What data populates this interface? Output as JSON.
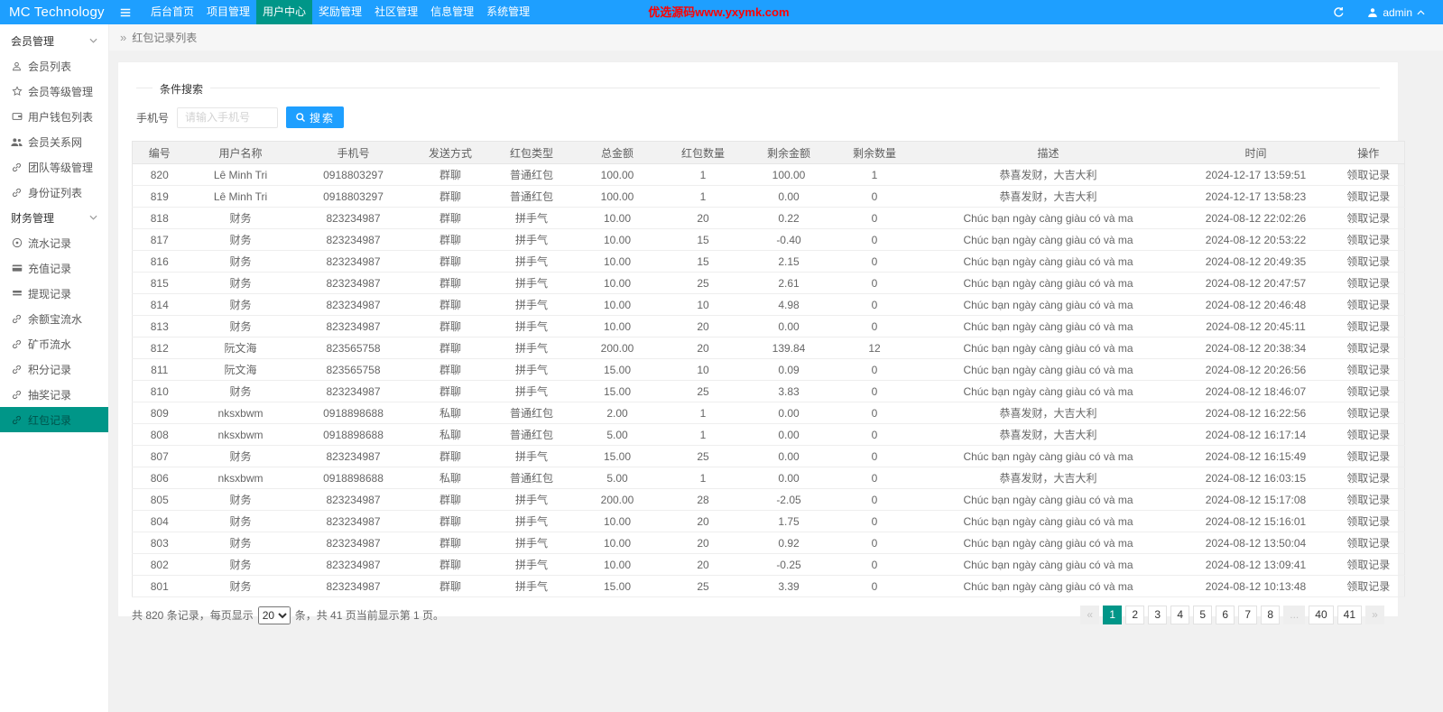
{
  "colors": {
    "topbar": "#1E9FFF",
    "accent_active": "#009688",
    "marquee_red": "#ff0000"
  },
  "header": {
    "logo": "MC Technology",
    "nav": [
      {
        "label": "后台首页",
        "active": false
      },
      {
        "label": "项目管理",
        "active": false
      },
      {
        "label": "用户中心",
        "active": true
      },
      {
        "label": "奖励管理",
        "active": false
      },
      {
        "label": "社区管理",
        "active": false
      },
      {
        "label": "信息管理",
        "active": false
      },
      {
        "label": "系统管理",
        "active": false
      }
    ],
    "marquee": "优选源码www.yxymk.com",
    "user": "admin"
  },
  "sidebar": {
    "groups": [
      {
        "label": "会员管理",
        "items": [
          {
            "icon": "user-icon",
            "label": "会员列表",
            "active": false
          },
          {
            "icon": "star-icon",
            "label": "会员等级管理",
            "active": false
          },
          {
            "icon": "wallet-icon",
            "label": "用户钱包列表",
            "active": false
          },
          {
            "icon": "users-icon",
            "label": "会员关系网",
            "active": false
          },
          {
            "icon": "link-icon",
            "label": "团队等级管理",
            "active": false
          },
          {
            "icon": "link-icon",
            "label": "身份证列表",
            "active": false
          }
        ]
      },
      {
        "label": "财务管理",
        "items": [
          {
            "icon": "record-icon",
            "label": "流水记录",
            "active": false
          },
          {
            "icon": "recharge-icon",
            "label": "充值记录",
            "active": false
          },
          {
            "icon": "withdraw-icon",
            "label": "提现记录",
            "active": false
          },
          {
            "icon": "link-icon",
            "label": "余额宝流水",
            "active": false
          },
          {
            "icon": "link-icon",
            "label": "矿币流水",
            "active": false
          },
          {
            "icon": "link-icon",
            "label": "积分记录",
            "active": false
          },
          {
            "icon": "link-icon",
            "label": "抽奖记录",
            "active": false
          },
          {
            "icon": "link-icon",
            "label": "红包记录",
            "active": true
          }
        ]
      }
    ]
  },
  "breadcrumb": {
    "separator": "»",
    "title": "红包记录列表"
  },
  "search": {
    "legend": "条件搜索",
    "label": "手机号",
    "placeholder": "请输入手机号",
    "button": "搜索"
  },
  "table": {
    "columns": [
      "编号",
      "用户名称",
      "手机号",
      "发送方式",
      "红包类型",
      "总金额",
      "红包数量",
      "剩余金额",
      "剩余数量",
      "描述",
      "时间",
      "操作"
    ],
    "rows": [
      [
        "820",
        "Lê Minh Tri",
        "0918803297",
        "群聊",
        "普通红包",
        "100.00",
        "1",
        "100.00",
        "1",
        "恭喜发财，大吉大利",
        "2024-12-17 13:59:51",
        "领取记录"
      ],
      [
        "819",
        "Lê Minh Tri",
        "0918803297",
        "群聊",
        "普通红包",
        "100.00",
        "1",
        "0.00",
        "0",
        "恭喜发财，大吉大利",
        "2024-12-17 13:58:23",
        "领取记录"
      ],
      [
        "818",
        "财务",
        "823234987",
        "群聊",
        "拼手气",
        "10.00",
        "20",
        "0.22",
        "0",
        "Chúc bạn ngày càng giàu có và ma",
        "2024-08-12 22:02:26",
        "领取记录"
      ],
      [
        "817",
        "财务",
        "823234987",
        "群聊",
        "拼手气",
        "10.00",
        "15",
        "-0.40",
        "0",
        "Chúc bạn ngày càng giàu có và ma",
        "2024-08-12 20:53:22",
        "领取记录"
      ],
      [
        "816",
        "财务",
        "823234987",
        "群聊",
        "拼手气",
        "10.00",
        "15",
        "2.15",
        "0",
        "Chúc bạn ngày càng giàu có và ma",
        "2024-08-12 20:49:35",
        "领取记录"
      ],
      [
        "815",
        "财务",
        "823234987",
        "群聊",
        "拼手气",
        "10.00",
        "25",
        "2.61",
        "0",
        "Chúc bạn ngày càng giàu có và ma",
        "2024-08-12 20:47:57",
        "领取记录"
      ],
      [
        "814",
        "财务",
        "823234987",
        "群聊",
        "拼手气",
        "10.00",
        "10",
        "4.98",
        "0",
        "Chúc bạn ngày càng giàu có và ma",
        "2024-08-12 20:46:48",
        "领取记录"
      ],
      [
        "813",
        "财务",
        "823234987",
        "群聊",
        "拼手气",
        "10.00",
        "20",
        "0.00",
        "0",
        "Chúc bạn ngày càng giàu có và ma",
        "2024-08-12 20:45:11",
        "领取记录"
      ],
      [
        "812",
        "阮文海",
        "823565758",
        "群聊",
        "拼手气",
        "200.00",
        "20",
        "139.84",
        "12",
        "Chúc bạn ngày càng giàu có và ma",
        "2024-08-12 20:38:34",
        "领取记录"
      ],
      [
        "811",
        "阮文海",
        "823565758",
        "群聊",
        "拼手气",
        "15.00",
        "10",
        "0.09",
        "0",
        "Chúc bạn ngày càng giàu có và ma",
        "2024-08-12 20:26:56",
        "领取记录"
      ],
      [
        "810",
        "财务",
        "823234987",
        "群聊",
        "拼手气",
        "15.00",
        "25",
        "3.83",
        "0",
        "Chúc bạn ngày càng giàu có và ma",
        "2024-08-12 18:46:07",
        "领取记录"
      ],
      [
        "809",
        "nksxbwm",
        "0918898688",
        "私聊",
        "普通红包",
        "2.00",
        "1",
        "0.00",
        "0",
        "恭喜发财，大吉大利",
        "2024-08-12 16:22:56",
        "领取记录"
      ],
      [
        "808",
        "nksxbwm",
        "0918898688",
        "私聊",
        "普通红包",
        "5.00",
        "1",
        "0.00",
        "0",
        "恭喜发财，大吉大利",
        "2024-08-12 16:17:14",
        "领取记录"
      ],
      [
        "807",
        "财务",
        "823234987",
        "群聊",
        "拼手气",
        "15.00",
        "25",
        "0.00",
        "0",
        "Chúc bạn ngày càng giàu có và ma",
        "2024-08-12 16:15:49",
        "领取记录"
      ],
      [
        "806",
        "nksxbwm",
        "0918898688",
        "私聊",
        "普通红包",
        "5.00",
        "1",
        "0.00",
        "0",
        "恭喜发财，大吉大利",
        "2024-08-12 16:03:15",
        "领取记录"
      ],
      [
        "805",
        "财务",
        "823234987",
        "群聊",
        "拼手气",
        "200.00",
        "28",
        "-2.05",
        "0",
        "Chúc bạn ngày càng giàu có và ma",
        "2024-08-12 15:17:08",
        "领取记录"
      ],
      [
        "804",
        "财务",
        "823234987",
        "群聊",
        "拼手气",
        "10.00",
        "20",
        "1.75",
        "0",
        "Chúc bạn ngày càng giàu có và ma",
        "2024-08-12 15:16:01",
        "领取记录"
      ],
      [
        "803",
        "财务",
        "823234987",
        "群聊",
        "拼手气",
        "10.00",
        "20",
        "0.92",
        "0",
        "Chúc bạn ngày càng giàu có và ma",
        "2024-08-12 13:50:04",
        "领取记录"
      ],
      [
        "802",
        "财务",
        "823234987",
        "群聊",
        "拼手气",
        "10.00",
        "20",
        "-0.25",
        "0",
        "Chúc bạn ngày càng giàu có và ma",
        "2024-08-12 13:09:41",
        "领取记录"
      ],
      [
        "801",
        "财务",
        "823234987",
        "群聊",
        "拼手气",
        "15.00",
        "25",
        "3.39",
        "0",
        "Chúc bạn ngày càng giàu có và ma",
        "2024-08-12 10:13:48",
        "领取记录"
      ]
    ]
  },
  "pagination": {
    "total_records": "820",
    "page_size": "20",
    "total_pages": "41",
    "current_page": "1",
    "summary_before": "共 820 条记录，每页显示",
    "summary_after": "条，共 41 页当前显示第 1 页。",
    "pages": [
      {
        "label": "«",
        "kind": "prev",
        "active": false
      },
      {
        "label": "1",
        "kind": "page",
        "active": true
      },
      {
        "label": "2",
        "kind": "page",
        "active": false
      },
      {
        "label": "3",
        "kind": "page",
        "active": false
      },
      {
        "label": "4",
        "kind": "page",
        "active": false
      },
      {
        "label": "5",
        "kind": "page",
        "active": false
      },
      {
        "label": "6",
        "kind": "page",
        "active": false
      },
      {
        "label": "7",
        "kind": "page",
        "active": false
      },
      {
        "label": "8",
        "kind": "page",
        "active": false
      },
      {
        "label": "...",
        "kind": "ellipsis",
        "active": false
      },
      {
        "label": "40",
        "kind": "page",
        "active": false
      },
      {
        "label": "41",
        "kind": "page",
        "active": false
      },
      {
        "label": "»",
        "kind": "next",
        "active": false
      }
    ]
  }
}
